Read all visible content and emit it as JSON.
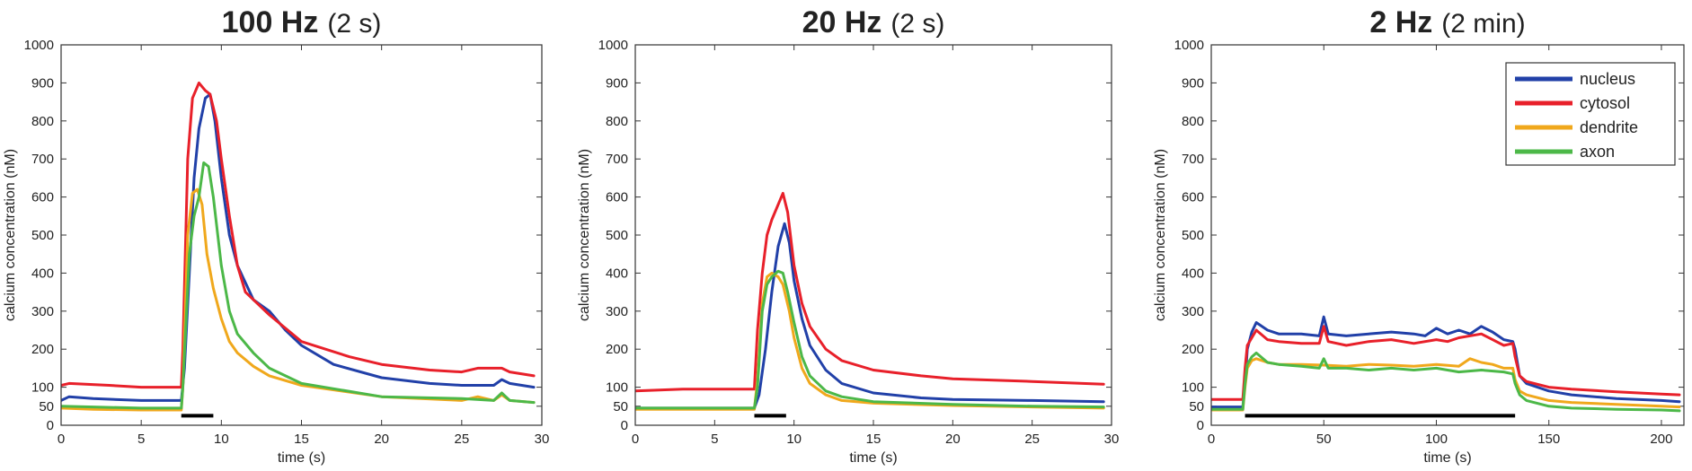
{
  "colors": {
    "nucleus": "#2140a8",
    "cytosol": "#e8202a",
    "dendrite": "#f0a81c",
    "axon": "#4cb848",
    "stimulus": "#000000"
  },
  "legend": {
    "placement": "top-right",
    "panel": 2,
    "entries": [
      "nucleus",
      "cytosol",
      "dendrite",
      "axon"
    ]
  },
  "chart_data": [
    {
      "type": "line",
      "title_bold": "100 Hz",
      "title_rest": "(2 s)",
      "xlabel": "time (s)",
      "ylabel": "calcium concentration (nM)",
      "xlim": [
        0,
        30
      ],
      "ylim": [
        0,
        1000
      ],
      "xticks": [
        0,
        5,
        10,
        15,
        20,
        25,
        30
      ],
      "xtick_labels": [
        "0",
        "5",
        "10",
        "15",
        "20",
        "25",
        "30"
      ],
      "yticks": [
        0,
        50,
        100,
        200,
        300,
        400,
        500,
        600,
        700,
        800,
        900,
        1000
      ],
      "ytick_labels": [
        "0",
        "50",
        "100",
        "200",
        "300",
        "400",
        "500",
        "600",
        "700",
        "800",
        "900",
        "1000"
      ],
      "stimulus": {
        "start": 7.5,
        "end": 9.5,
        "y": 25
      },
      "series": [
        {
          "name": "nucleus",
          "x": [
            0,
            0.5,
            2,
            5,
            7.5,
            7.7,
            8,
            8.3,
            8.6,
            9,
            9.3,
            9.6,
            10,
            10.5,
            11,
            12,
            13,
            14,
            15,
            17,
            20,
            23,
            25,
            27,
            27.5,
            28,
            29.5
          ],
          "y": [
            65,
            75,
            70,
            65,
            65,
            150,
            400,
            650,
            780,
            860,
            870,
            800,
            650,
            500,
            420,
            330,
            300,
            250,
            210,
            160,
            125,
            110,
            105,
            105,
            120,
            110,
            100
          ]
        },
        {
          "name": "cytosol",
          "x": [
            0,
            0.5,
            3,
            5,
            7.5,
            7.6,
            7.9,
            8.2,
            8.6,
            9,
            9.3,
            9.7,
            10,
            10.5,
            11,
            11.5,
            12,
            13,
            15,
            18,
            20,
            23,
            25,
            26,
            27.5,
            28,
            29.5
          ],
          "y": [
            105,
            110,
            105,
            100,
            100,
            200,
            700,
            860,
            900,
            880,
            870,
            800,
            700,
            550,
            420,
            350,
            330,
            290,
            220,
            180,
            160,
            145,
            140,
            150,
            150,
            140,
            130
          ]
        },
        {
          "name": "dendrite",
          "x": [
            0,
            2,
            5,
            7.5,
            7.6,
            7.9,
            8.2,
            8.5,
            8.8,
            9.1,
            9.5,
            10,
            10.5,
            11,
            12,
            13,
            15,
            20,
            25,
            26,
            27,
            27.5,
            28,
            29.5
          ],
          "y": [
            45,
            42,
            40,
            40,
            100,
            500,
            610,
            620,
            580,
            450,
            360,
            280,
            220,
            190,
            155,
            130,
            105,
            75,
            65,
            75,
            65,
            80,
            65,
            60
          ]
        },
        {
          "name": "axon",
          "x": [
            0,
            2,
            5,
            7.5,
            7.6,
            8,
            8.3,
            8.6,
            8.9,
            9.2,
            9.5,
            10,
            10.5,
            11,
            12,
            13,
            15,
            20,
            25,
            27,
            27.5,
            28,
            29.5
          ],
          "y": [
            50,
            48,
            45,
            45,
            100,
            450,
            550,
            600,
            690,
            680,
            600,
            420,
            300,
            240,
            190,
            150,
            110,
            75,
            70,
            65,
            85,
            65,
            60
          ]
        }
      ]
    },
    {
      "type": "line",
      "title_bold": "20 Hz",
      "title_rest": "(2 s)",
      "xlabel": "time (s)",
      "ylabel": "calcium concentration (nM)",
      "xlim": [
        0,
        30
      ],
      "ylim": [
        0,
        1000
      ],
      "xticks": [
        0,
        5,
        10,
        15,
        20,
        25,
        30
      ],
      "xtick_labels": [
        "0",
        "5",
        "10",
        "15",
        "20",
        "25",
        "30"
      ],
      "yticks": [
        0,
        50,
        100,
        200,
        300,
        400,
        500,
        600,
        700,
        800,
        900,
        1000
      ],
      "ytick_labels": [
        "0",
        "50",
        "100",
        "200",
        "300",
        "400",
        "500",
        "600",
        "700",
        "800",
        "900",
        "1000"
      ],
      "stimulus": {
        "start": 7.5,
        "end": 9.5,
        "y": 25
      },
      "series": [
        {
          "name": "nucleus",
          "x": [
            0,
            5,
            7.5,
            7.8,
            8.2,
            8.6,
            9,
            9.4,
            9.7,
            10,
            10.5,
            11,
            12,
            13,
            15,
            18,
            20,
            25,
            29.5
          ],
          "y": [
            45,
            45,
            45,
            80,
            200,
            350,
            470,
            530,
            480,
            380,
            280,
            210,
            145,
            110,
            85,
            72,
            68,
            65,
            62
          ]
        },
        {
          "name": "cytosol",
          "x": [
            0,
            3,
            5,
            7.5,
            7.7,
            8,
            8.3,
            8.6,
            9,
            9.3,
            9.6,
            10,
            10.5,
            11,
            12,
            13,
            15,
            18,
            20,
            25,
            29.5
          ],
          "y": [
            90,
            95,
            95,
            95,
            250,
            400,
            500,
            540,
            580,
            610,
            560,
            420,
            320,
            260,
            200,
            170,
            145,
            130,
            122,
            115,
            108
          ]
        },
        {
          "name": "dendrite",
          "x": [
            0,
            5,
            7.5,
            7.7,
            8,
            8.3,
            8.6,
            9,
            9.3,
            9.7,
            10,
            10.5,
            11,
            12,
            13,
            15,
            20,
            25,
            29.5
          ],
          "y": [
            42,
            42,
            42,
            120,
            320,
            390,
            400,
            390,
            370,
            300,
            230,
            150,
            110,
            80,
            65,
            58,
            52,
            48,
            45
          ]
        },
        {
          "name": "axon",
          "x": [
            0,
            5,
            7.5,
            7.7,
            8,
            8.3,
            8.6,
            9,
            9.3,
            9.6,
            10,
            10.5,
            11,
            12,
            13,
            15,
            20,
            25,
            29.5
          ],
          "y": [
            45,
            45,
            45,
            100,
            300,
            370,
            390,
            405,
            400,
            350,
            270,
            180,
            130,
            90,
            75,
            62,
            55,
            50,
            48
          ]
        }
      ]
    },
    {
      "type": "line",
      "title_bold": "2 Hz",
      "title_rest": "(2 min)",
      "xlabel": "time (s)",
      "ylabel": "calcium concentration (nM)",
      "xlim": [
        0,
        210
      ],
      "ylim": [
        0,
        1000
      ],
      "xticks": [
        0,
        50,
        100,
        150,
        200
      ],
      "xtick_labels": [
        "0",
        "50",
        "100",
        "150",
        "200"
      ],
      "yticks": [
        0,
        50,
        100,
        200,
        300,
        400,
        500,
        600,
        700,
        800,
        900,
        1000
      ],
      "ytick_labels": [
        "0",
        "50",
        "100",
        "200",
        "300",
        "400",
        "500",
        "600",
        "700",
        "800",
        "900",
        "1000"
      ],
      "stimulus": {
        "start": 15,
        "end": 135,
        "y": 25
      },
      "series": [
        {
          "name": "nucleus",
          "x": [
            0,
            10,
            14,
            15,
            16,
            18,
            20,
            25,
            30,
            40,
            48,
            50,
            52,
            60,
            70,
            80,
            90,
            95,
            100,
            105,
            110,
            115,
            120,
            125,
            130,
            134,
            135,
            137,
            140,
            150,
            160,
            180,
            200,
            208
          ],
          "y": [
            48,
            48,
            48,
            110,
            200,
            245,
            270,
            250,
            240,
            240,
            235,
            285,
            240,
            235,
            240,
            245,
            240,
            235,
            255,
            240,
            250,
            240,
            260,
            245,
            225,
            220,
            200,
            130,
            110,
            90,
            80,
            70,
            65,
            62
          ]
        },
        {
          "name": "cytosol",
          "x": [
            0,
            10,
            14,
            15,
            16,
            18,
            20,
            25,
            30,
            40,
            48,
            50,
            52,
            60,
            70,
            80,
            90,
            100,
            105,
            110,
            120,
            125,
            130,
            134,
            135,
            137,
            140,
            150,
            160,
            180,
            200,
            208
          ],
          "y": [
            68,
            68,
            68,
            150,
            210,
            230,
            250,
            225,
            220,
            215,
            215,
            260,
            220,
            210,
            220,
            225,
            215,
            225,
            220,
            230,
            240,
            225,
            210,
            215,
            180,
            130,
            115,
            100,
            95,
            88,
            82,
            80
          ]
        },
        {
          "name": "dendrite",
          "x": [
            0,
            10,
            14,
            15,
            16,
            18,
            20,
            25,
            30,
            40,
            50,
            60,
            70,
            80,
            90,
            100,
            110,
            115,
            120,
            125,
            130,
            134,
            135,
            137,
            140,
            150,
            160,
            180,
            200,
            208
          ],
          "y": [
            40,
            40,
            40,
            100,
            150,
            170,
            175,
            165,
            160,
            160,
            158,
            155,
            160,
            158,
            155,
            160,
            155,
            175,
            165,
            160,
            150,
            150,
            120,
            90,
            80,
            65,
            60,
            55,
            50,
            48
          ]
        },
        {
          "name": "axon",
          "x": [
            0,
            10,
            14,
            15,
            16,
            18,
            20,
            25,
            30,
            40,
            48,
            50,
            52,
            60,
            70,
            80,
            90,
            100,
            110,
            120,
            130,
            134,
            135,
            137,
            140,
            150,
            160,
            180,
            200,
            208
          ],
          "y": [
            42,
            42,
            42,
            110,
            160,
            180,
            190,
            165,
            160,
            155,
            150,
            175,
            150,
            150,
            145,
            150,
            145,
            150,
            140,
            145,
            140,
            135,
            110,
            80,
            65,
            50,
            45,
            42,
            40,
            38
          ]
        }
      ]
    }
  ]
}
